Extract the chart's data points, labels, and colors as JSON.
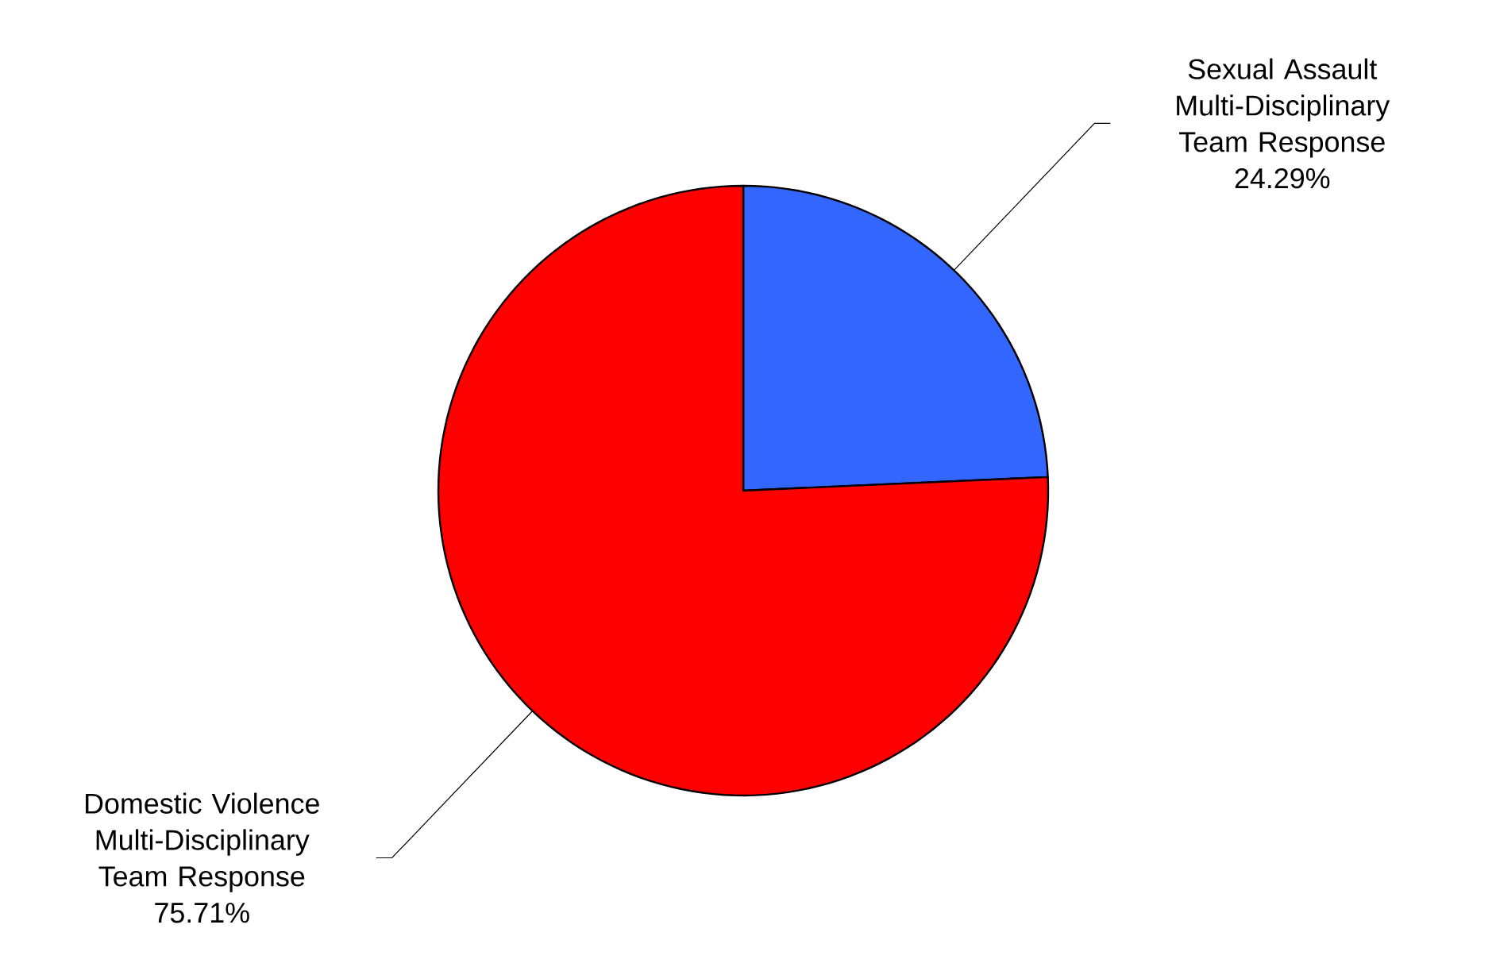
{
  "chart_data": {
    "type": "pie",
    "categories": [
      "Sexual Assault Multi-Disciplinary Team Response",
      "Domestic Violence Multi-Disciplinary Team Response"
    ],
    "values": [
      24.29,
      75.71
    ],
    "value_labels": [
      "24.29%",
      "75.71%"
    ],
    "colors": [
      "#3366ff",
      "#ff0000"
    ]
  }
}
